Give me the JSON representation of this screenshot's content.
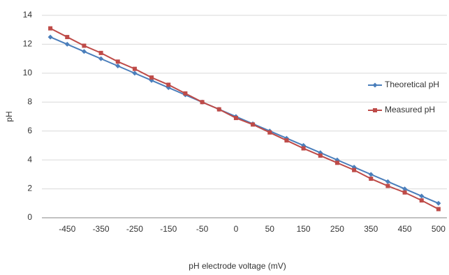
{
  "chart_data": {
    "type": "line",
    "x_label": "pH electrode voltage (mV)",
    "y_label": "pH",
    "categories": [
      null,
      "-450",
      null,
      "-350",
      null,
      "-250",
      null,
      "-150",
      null,
      "-50",
      null,
      "0",
      null,
      "50",
      null,
      "150",
      null,
      "250",
      null,
      "350",
      null,
      "450",
      null,
      "500"
    ],
    "series": [
      {
        "name": "Theoretical pH",
        "color": "#4a7ebb",
        "marker": "diamond",
        "values": [
          12.5,
          12.0,
          11.5,
          11.0,
          10.5,
          10.0,
          9.5,
          9.0,
          8.5,
          8.0,
          7.5,
          7.0,
          6.5,
          6.0,
          5.5,
          5.0,
          4.5,
          4.0,
          3.5,
          3.0,
          2.5,
          2.0,
          1.5,
          1.0
        ]
      },
      {
        "name": "Measured pH",
        "color": "#be4b48",
        "marker": "square",
        "values": [
          13.1,
          12.5,
          11.9,
          11.4,
          10.8,
          10.3,
          9.7,
          9.2,
          8.6,
          8.0,
          7.5,
          6.9,
          6.45,
          5.9,
          5.35,
          4.8,
          4.3,
          3.8,
          3.3,
          2.7,
          2.2,
          1.75,
          1.2,
          0.6
        ]
      }
    ],
    "ylim": [
      0,
      14
    ],
    "yticks": [
      0,
      2,
      4,
      6,
      8,
      10,
      12,
      14
    ],
    "grid": true,
    "legend": "right"
  }
}
